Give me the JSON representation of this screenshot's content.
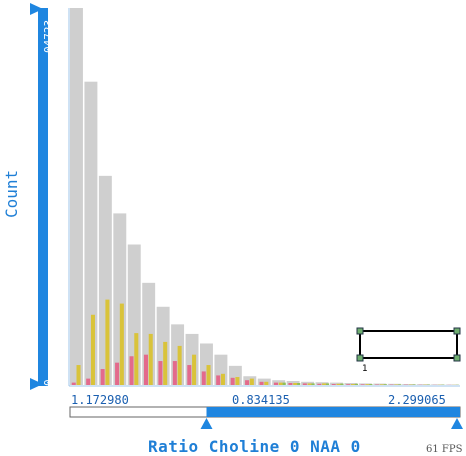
{
  "chart_data": {
    "type": "bar",
    "xlabel": "Ratio Choline 0 NAA 0",
    "ylabel": "Count",
    "y_ticks": [
      "04723",
      "0"
    ],
    "ylim": [
      0,
      4723
    ],
    "x_ticks": [
      "1.172980",
      "0.834135",
      "2.299065"
    ],
    "bin_count": 27,
    "series": [
      {
        "name": "",
        "color": "#cfcfcf",
        "values": [
          4723,
          3800,
          2620,
          2150,
          1760,
          1280,
          980,
          760,
          640,
          520,
          380,
          240,
          110,
          80,
          60,
          50,
          40,
          35,
          30,
          25,
          20,
          18,
          15,
          12,
          10,
          8,
          6
        ]
      },
      {
        "name": "",
        "color": "#d9c33a",
        "values": [
          250,
          880,
          1070,
          1020,
          650,
          640,
          540,
          490,
          380,
          250,
          140,
          100,
          80,
          40,
          30,
          25,
          20,
          20,
          15,
          12,
          10,
          8,
          6,
          5,
          4,
          3,
          2
        ]
      },
      {
        "name": "",
        "color": "#e36a8c",
        "values": [
          30,
          80,
          200,
          280,
          360,
          380,
          300,
          300,
          250,
          170,
          120,
          90,
          60,
          40,
          30,
          25,
          20,
          15,
          12,
          10,
          8,
          6,
          5,
          4,
          3,
          2,
          2
        ]
      },
      {
        "name": "",
        "color": "#8fbf5a",
        "values": [
          0,
          0,
          0,
          0,
          0,
          0,
          0,
          0,
          0,
          0,
          0,
          0,
          0,
          0,
          30,
          25,
          20,
          20,
          18,
          15,
          12,
          10,
          8,
          6,
          5,
          4,
          3
        ]
      }
    ],
    "range_slider": {
      "low_fraction": 0.35,
      "high_fraction": 1.0
    },
    "selection_box_label": "1"
  },
  "status": {
    "fps": "61 FPS"
  }
}
